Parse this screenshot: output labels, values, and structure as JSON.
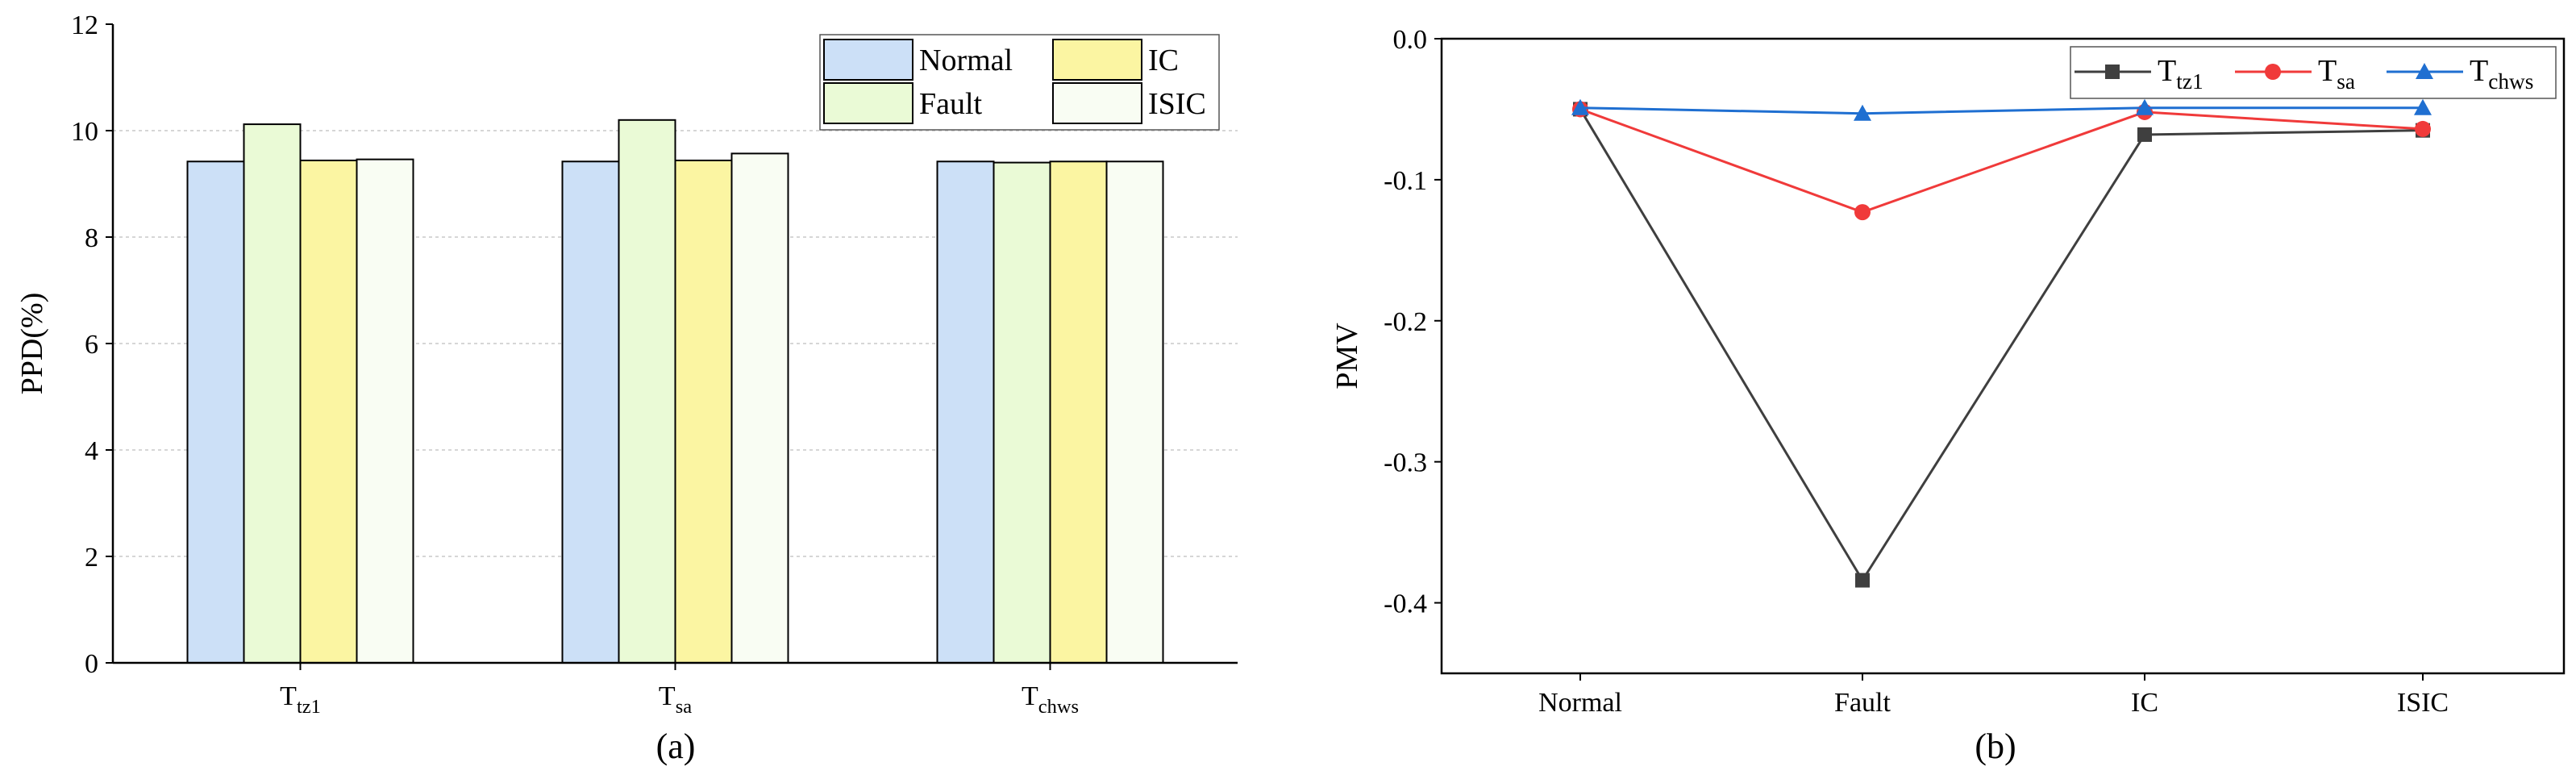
{
  "chart_data": [
    {
      "panel": "(a)",
      "type": "bar",
      "ylabel": "PPD(%)",
      "xlabel": "",
      "ylim": [
        0,
        12
      ],
      "yticks": [
        "0",
        "2",
        "4",
        "6",
        "8",
        "10",
        "12"
      ],
      "ytick_values": [
        0,
        2,
        4,
        6,
        8,
        10,
        12
      ],
      "grid": "horizontal-dashed",
      "legend_position": "top-right",
      "categories": [
        {
          "base": "T",
          "sub": "tz1"
        },
        {
          "base": "T",
          "sub": "sa"
        },
        {
          "base": "T",
          "sub": "chws"
        }
      ],
      "series": [
        {
          "name": "Normal",
          "color": "#cce0f7",
          "values": [
            9.42,
            9.42,
            9.42
          ]
        },
        {
          "name": "Fault",
          "color": "#eafad6",
          "values": [
            10.12,
            10.2,
            9.4
          ]
        },
        {
          "name": "IC",
          "color": "#fbf5a2",
          "values": [
            9.44,
            9.44,
            9.42
          ]
        },
        {
          "name": "ISIC",
          "color": "#f9fdf3",
          "values": [
            9.46,
            9.57,
            9.42
          ]
        }
      ]
    },
    {
      "panel": "(b)",
      "type": "line",
      "ylabel": "PMV",
      "xlabel": "",
      "ylim": [
        -0.45,
        0.0
      ],
      "yticks": [
        "0.0",
        "-0.1",
        "-0.2",
        "-0.3",
        "-0.4"
      ],
      "ytick_values": [
        0.0,
        -0.1,
        -0.2,
        -0.3,
        -0.4
      ],
      "legend_position": "top-right",
      "categories": [
        "Normal",
        "Fault",
        "IC",
        "ISIC"
      ],
      "series": [
        {
          "base": "T",
          "sub": "tz1",
          "color": "#3f3f3f",
          "marker": "square",
          "values": [
            -0.05,
            -0.384,
            -0.068,
            -0.065
          ]
        },
        {
          "base": "T",
          "sub": "sa",
          "color": "#f03a3a",
          "marker": "circle",
          "values": [
            -0.05,
            -0.123,
            -0.052,
            -0.064
          ]
        },
        {
          "base": "T",
          "sub": "chws",
          "color": "#1f6fd1",
          "marker": "triangle",
          "values": [
            -0.049,
            -0.053,
            -0.049,
            -0.049
          ]
        }
      ]
    }
  ]
}
